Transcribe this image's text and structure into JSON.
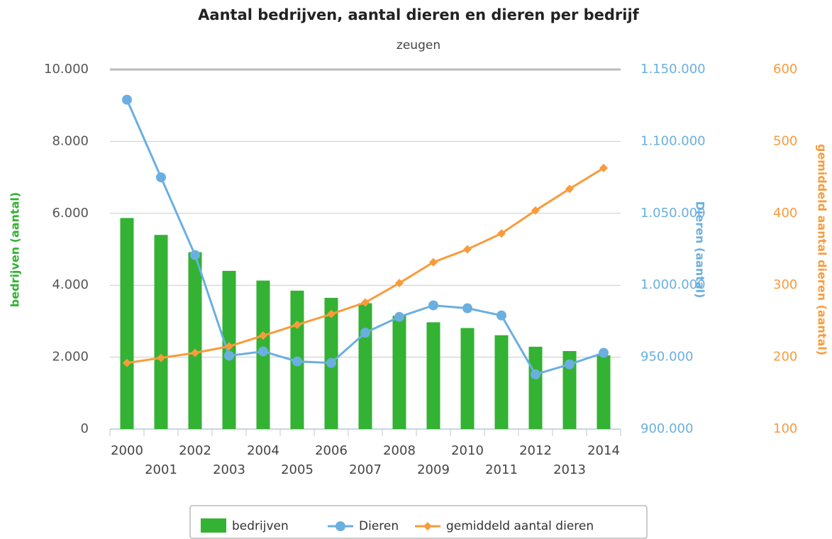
{
  "chart_data": {
    "type": "bar",
    "title": "Aantal bedrijven, aantal dieren en dieren per bedrijf",
    "subtitle": "zeugen",
    "categories": [
      "2000",
      "2001",
      "2002",
      "2003",
      "2004",
      "2005",
      "2006",
      "2007",
      "2008",
      "2009",
      "2010",
      "2011",
      "2012",
      "2013",
      "2014"
    ],
    "series": [
      {
        "name": "bedrijven",
        "type": "bar",
        "color": "#33b233",
        "axis": "y",
        "values": [
          5870,
          5400,
          4920,
          4400,
          4130,
          3850,
          3650,
          3500,
          3150,
          2970,
          2810,
          2610,
          2290,
          2170,
          2050
        ]
      },
      {
        "name": "Dieren",
        "type": "line",
        "marker": "circle",
        "color": "#6aafe0",
        "axis": "y2",
        "values": [
          1129000,
          1075000,
          1021000,
          951000,
          954000,
          947000,
          946000,
          967000,
          978000,
          986000,
          984000,
          979000,
          938000,
          945000,
          953000
        ]
      },
      {
        "name": "gemiddeld aantal dieren",
        "type": "line",
        "marker": "diamond",
        "color": "#f99b3b",
        "axis": "y3",
        "values": [
          192,
          199,
          206,
          215,
          230,
          245,
          260,
          276,
          303,
          332,
          350,
          372,
          404,
          434,
          463
        ]
      }
    ],
    "ylabel": "bedrijven (aantal)",
    "y2label": "Dieren (aantal)",
    "y3label": "gemiddeld aantal dieren (aantal)",
    "ylim": [
      0,
      10000
    ],
    "yticks": [
      0,
      {
        "value": 2000,
        "label": "2.000"
      },
      {
        "value": 4000,
        "label": "4.000"
      },
      {
        "value": 6000,
        "label": "6.000"
      },
      {
        "value": 8000,
        "label": "8.000"
      },
      {
        "value": 10000,
        "label": "10.000"
      }
    ],
    "y2lim": [
      900000,
      1150000
    ],
    "y2ticks": [
      {
        "value": 900000,
        "label": "900.000"
      },
      {
        "value": 950000,
        "label": "950.000"
      },
      {
        "value": 1000000,
        "label": "1.000.000"
      },
      {
        "value": 1050000,
        "label": "1.050.000"
      },
      {
        "value": 1100000,
        "label": "1.100.000"
      },
      {
        "value": 1150000,
        "label": "1.150.000"
      }
    ],
    "y3lim": [
      100,
      600
    ],
    "y3ticks": [
      100,
      200,
      300,
      400,
      500,
      600
    ],
    "grid": true,
    "legend": "bottom"
  }
}
